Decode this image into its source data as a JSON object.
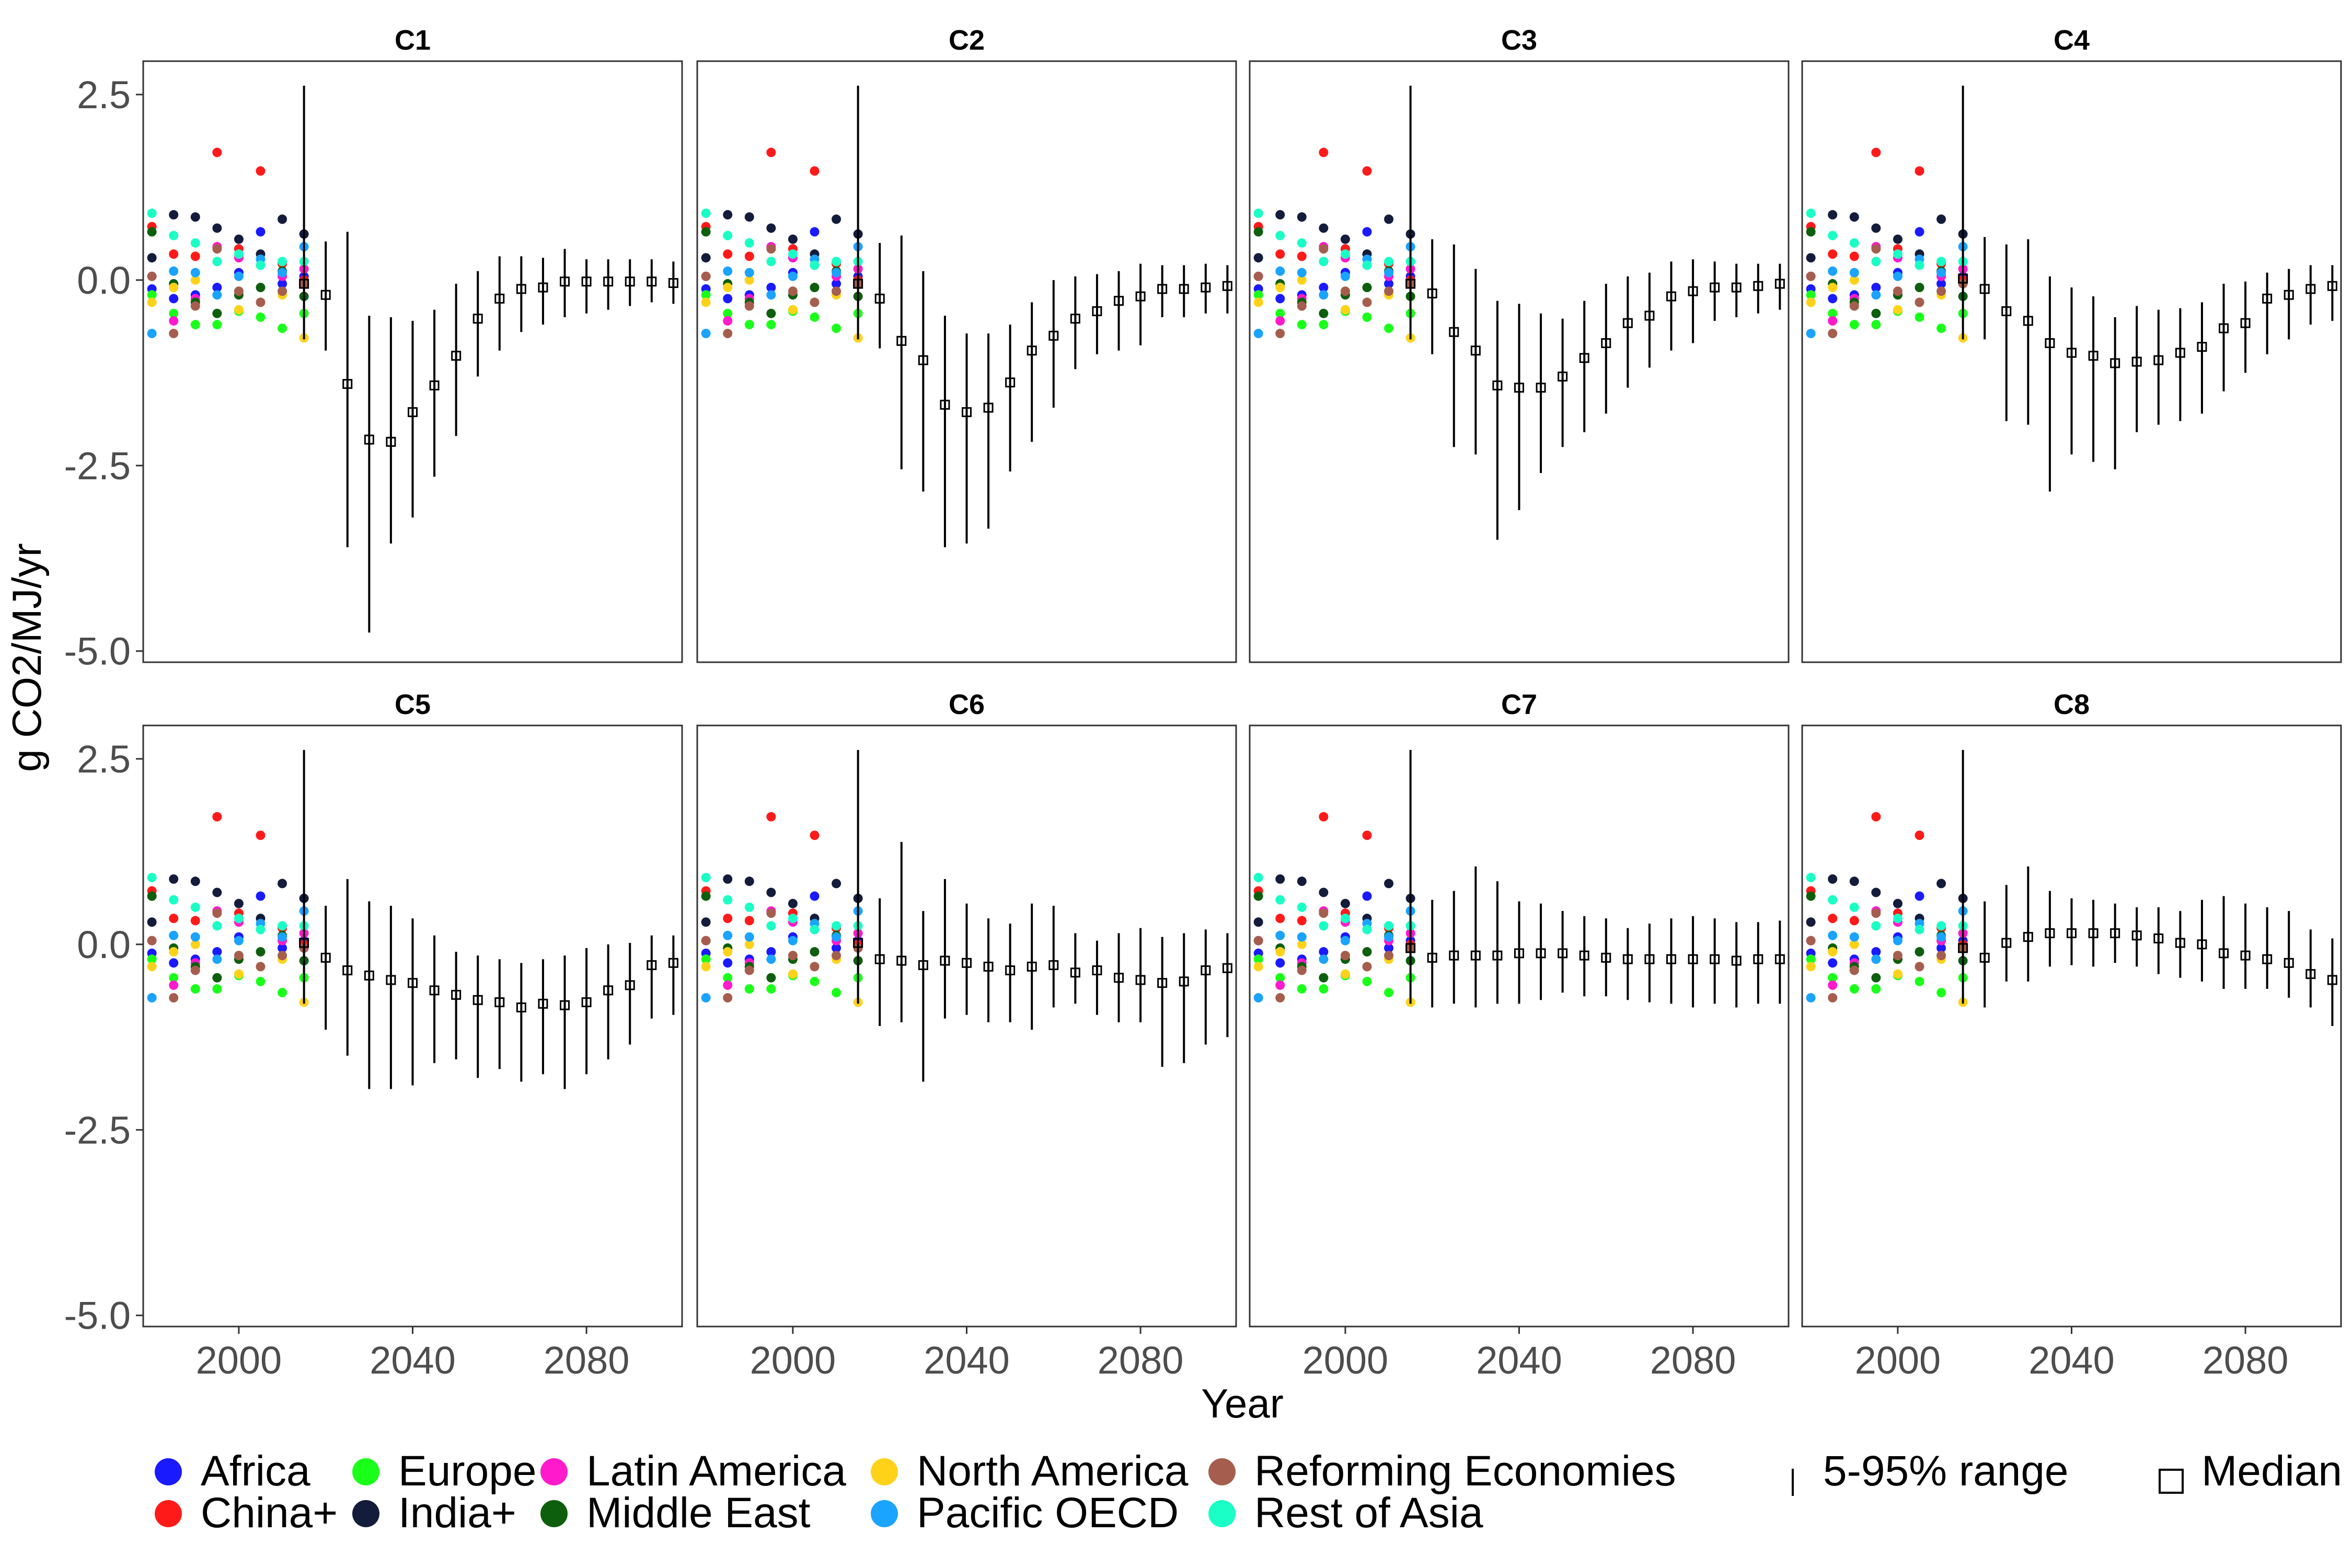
{
  "chart_data": {
    "type": "scatter",
    "panels": [
      "C1",
      "C2",
      "C3",
      "C4",
      "C5",
      "C6",
      "C7",
      "C8"
    ],
    "xlabel": "Year",
    "ylabel": "g CO2/MJ/yr",
    "xlim": [
      1978,
      2102
    ],
    "ylim": [
      -5.15,
      2.95
    ],
    "x_ticks": [
      {
        "value": 2000,
        "label": "2000"
      },
      {
        "value": 2040,
        "label": "2040"
      },
      {
        "value": 2080,
        "label": "2080"
      }
    ],
    "y_ticks": [
      {
        "value": 2.5,
        "label": "2.5"
      },
      {
        "value": 0.0,
        "label": "0.0"
      },
      {
        "value": -2.5,
        "label": "-2.5"
      },
      {
        "value": -5.0,
        "label": "-5.0"
      }
    ],
    "grid": false,
    "legend_position": "bottom",
    "regions": [
      {
        "name": "Africa",
        "color": "#1a1aff",
        "points": [
          [
            1980,
            -0.12
          ],
          [
            1985,
            -0.25
          ],
          [
            1990,
            -0.2
          ],
          [
            1995,
            -0.1
          ],
          [
            2000,
            0.1
          ],
          [
            2005,
            0.65
          ],
          [
            2010,
            -0.05
          ],
          [
            2015,
            0.05
          ]
        ]
      },
      {
        "name": "China+",
        "color": "#ff1a1a",
        "points": [
          [
            1980,
            0.72
          ],
          [
            1985,
            0.35
          ],
          [
            1990,
            0.32
          ],
          [
            1995,
            1.72
          ],
          [
            2000,
            0.42
          ],
          [
            2005,
            1.47
          ],
          [
            2010,
            0.22
          ],
          [
            2015,
            0.0
          ]
        ]
      },
      {
        "name": "Europe",
        "color": "#1aff1a",
        "points": [
          [
            1980,
            -0.2
          ],
          [
            1985,
            -0.45
          ],
          [
            1990,
            -0.6
          ],
          [
            1995,
            -0.6
          ],
          [
            2000,
            -0.42
          ],
          [
            2005,
            -0.5
          ],
          [
            2010,
            -0.65
          ],
          [
            2015,
            -0.45
          ]
        ]
      },
      {
        "name": "India+",
        "color": "#141c3c",
        "points": [
          [
            1980,
            0.3
          ],
          [
            1985,
            0.88
          ],
          [
            1990,
            0.85
          ],
          [
            1995,
            0.7
          ],
          [
            2000,
            0.55
          ],
          [
            2005,
            0.35
          ],
          [
            2010,
            0.82
          ],
          [
            2015,
            0.62
          ]
        ]
      },
      {
        "name": "Latin America",
        "color": "#ff1acc",
        "points": [
          [
            1980,
            0.05
          ],
          [
            1985,
            -0.55
          ],
          [
            1990,
            -0.25
          ],
          [
            1995,
            0.45
          ],
          [
            2000,
            0.3
          ],
          [
            2005,
            0.2
          ],
          [
            2010,
            0.05
          ],
          [
            2015,
            0.15
          ]
        ]
      },
      {
        "name": "Middle East",
        "color": "#0d5f0d",
        "points": [
          [
            1980,
            0.65
          ],
          [
            1985,
            -0.05
          ],
          [
            1990,
            -0.3
          ],
          [
            1995,
            -0.45
          ],
          [
            2000,
            -0.2
          ],
          [
            2005,
            -0.1
          ],
          [
            2010,
            0.12
          ],
          [
            2015,
            -0.22
          ]
        ]
      },
      {
        "name": "North America",
        "color": "#ffd21a",
        "points": [
          [
            1980,
            -0.3
          ],
          [
            1985,
            -0.1
          ],
          [
            1990,
            0.0
          ],
          [
            1995,
            0.25
          ],
          [
            2000,
            -0.4
          ],
          [
            2005,
            -0.3
          ],
          [
            2010,
            -0.2
          ],
          [
            2015,
            -0.78
          ]
        ]
      },
      {
        "name": "Pacific OECD",
        "color": "#1aa3ff",
        "points": [
          [
            1980,
            -0.72
          ],
          [
            1985,
            0.12
          ],
          [
            1990,
            0.1
          ],
          [
            1995,
            -0.2
          ],
          [
            2000,
            0.05
          ],
          [
            2005,
            0.28
          ],
          [
            2010,
            0.1
          ],
          [
            2015,
            0.45
          ]
        ]
      },
      {
        "name": "Reforming Economies",
        "color": "#a55e4e",
        "points": [
          [
            1980,
            0.05
          ],
          [
            1985,
            -0.72
          ],
          [
            1990,
            -0.35
          ],
          [
            1995,
            0.42
          ],
          [
            2000,
            -0.15
          ],
          [
            2005,
            -0.3
          ],
          [
            2010,
            -0.15
          ],
          [
            2015,
            -0.05
          ]
        ]
      },
      {
        "name": "Rest of Asia",
        "color": "#1affc6",
        "points": [
          [
            1980,
            0.9
          ],
          [
            1985,
            0.6
          ],
          [
            1990,
            0.5
          ],
          [
            1995,
            0.25
          ],
          [
            2000,
            0.35
          ],
          [
            2005,
            0.2
          ],
          [
            2010,
            0.25
          ],
          [
            2015,
            0.25
          ]
        ]
      }
    ],
    "projection_years": [
      2015,
      2020,
      2025,
      2030,
      2035,
      2040,
      2045,
      2050,
      2055,
      2060,
      2065,
      2070,
      2075,
      2080,
      2085,
      2090,
      2095,
      2100
    ],
    "scenarios": [
      {
        "name": "C1",
        "median": [
          -0.05,
          -0.2,
          -1.4,
          -2.15,
          -2.18,
          -1.78,
          -1.42,
          -1.02,
          -0.52,
          -0.25,
          -0.12,
          -0.1,
          -0.02,
          -0.02,
          -0.02,
          -0.02,
          -0.02,
          -0.04
        ],
        "low": [
          -0.8,
          -0.95,
          -3.6,
          -4.75,
          -3.55,
          -3.2,
          -2.65,
          -2.1,
          -1.3,
          -0.95,
          -0.7,
          -0.6,
          -0.5,
          -0.45,
          -0.4,
          -0.35,
          -0.3,
          -0.32
        ],
        "high": [
          2.62,
          0.52,
          0.65,
          -0.48,
          -0.5,
          -0.55,
          -0.4,
          -0.05,
          0.12,
          0.32,
          0.32,
          0.3,
          0.42,
          0.28,
          0.28,
          0.28,
          0.28,
          0.25
        ]
      },
      {
        "name": "C2",
        "median": [
          -0.05,
          -0.25,
          -0.82,
          -1.08,
          -1.68,
          -1.78,
          -1.72,
          -1.38,
          -0.95,
          -0.75,
          -0.52,
          -0.42,
          -0.28,
          -0.22,
          -0.12,
          -0.12,
          -0.1,
          -0.08
        ],
        "low": [
          -0.8,
          -0.92,
          -2.55,
          -2.85,
          -3.6,
          -3.55,
          -3.35,
          -2.58,
          -2.18,
          -1.72,
          -1.2,
          -1.0,
          -0.95,
          -0.88,
          -0.5,
          -0.5,
          -0.45,
          -0.45
        ],
        "high": [
          2.62,
          0.5,
          0.6,
          0.12,
          -0.48,
          -0.72,
          -0.72,
          -0.6,
          -0.3,
          0.0,
          0.05,
          0.08,
          0.12,
          0.22,
          0.2,
          0.2,
          0.22,
          0.2
        ]
      },
      {
        "name": "C3",
        "median": [
          -0.05,
          -0.18,
          -0.7,
          -0.95,
          -1.42,
          -1.45,
          -1.45,
          -1.3,
          -1.05,
          -0.85,
          -0.58,
          -0.48,
          -0.22,
          -0.15,
          -0.1,
          -0.1,
          -0.08,
          -0.05
        ],
        "low": [
          -0.8,
          -1.0,
          -2.25,
          -2.35,
          -3.5,
          -3.1,
          -2.6,
          -2.25,
          -2.05,
          -1.8,
          -1.45,
          -1.18,
          -0.95,
          -0.85,
          -0.55,
          -0.5,
          -0.45,
          -0.4
        ],
        "high": [
          2.62,
          0.55,
          0.48,
          0.15,
          -0.28,
          -0.32,
          -0.45,
          -0.52,
          -0.28,
          -0.05,
          0.05,
          0.1,
          0.25,
          0.28,
          0.25,
          0.22,
          0.22,
          0.22
        ]
      },
      {
        "name": "C4",
        "median": [
          0.02,
          -0.12,
          -0.42,
          -0.55,
          -0.85,
          -0.98,
          -1.02,
          -1.12,
          -1.1,
          -1.08,
          -0.98,
          -0.9,
          -0.65,
          -0.58,
          -0.25,
          -0.2,
          -0.12,
          -0.08
        ],
        "low": [
          -0.8,
          -0.8,
          -1.9,
          -1.95,
          -2.85,
          -2.35,
          -2.45,
          -2.55,
          -2.05,
          -1.95,
          -1.9,
          -1.8,
          -1.5,
          -1.25,
          -1.0,
          -0.8,
          -0.6,
          -0.55
        ],
        "high": [
          2.62,
          0.58,
          0.48,
          0.55,
          0.05,
          -0.1,
          -0.22,
          -0.5,
          -0.35,
          -0.4,
          -0.38,
          -0.3,
          -0.05,
          -0.02,
          0.1,
          0.15,
          0.2,
          0.2
        ]
      },
      {
        "name": "C5",
        "median": [
          0.02,
          -0.18,
          -0.35,
          -0.42,
          -0.48,
          -0.52,
          -0.62,
          -0.68,
          -0.75,
          -0.78,
          -0.85,
          -0.8,
          -0.82,
          -0.78,
          -0.62,
          -0.55,
          -0.28,
          -0.25
        ],
        "low": [
          -0.8,
          -1.15,
          -1.5,
          -1.95,
          -1.95,
          -1.9,
          -1.6,
          -1.55,
          -1.8,
          -1.68,
          -1.85,
          -1.75,
          -1.95,
          -1.75,
          -1.55,
          -1.35,
          -1.0,
          -0.95
        ],
        "high": [
          2.62,
          0.52,
          0.88,
          0.58,
          0.52,
          0.35,
          0.12,
          -0.1,
          -0.15,
          -0.2,
          -0.25,
          -0.2,
          -0.15,
          -0.05,
          0.0,
          0.02,
          0.12,
          0.12
        ]
      },
      {
        "name": "C6",
        "median": [
          0.02,
          -0.2,
          -0.22,
          -0.28,
          -0.22,
          -0.25,
          -0.3,
          -0.35,
          -0.3,
          -0.28,
          -0.38,
          -0.35,
          -0.45,
          -0.48,
          -0.52,
          -0.5,
          -0.35,
          -0.32
        ],
        "low": [
          -0.8,
          -1.1,
          -1.05,
          -1.85,
          -1.0,
          -0.95,
          -1.05,
          -1.05,
          -1.15,
          -0.85,
          -0.8,
          -0.95,
          -1.05,
          -1.05,
          -1.65,
          -1.6,
          -1.35,
          -1.25
        ],
        "high": [
          2.62,
          0.62,
          1.38,
          0.45,
          0.88,
          0.55,
          0.35,
          0.28,
          0.55,
          0.52,
          0.15,
          0.05,
          0.15,
          0.22,
          0.1,
          0.15,
          0.2,
          0.15
        ]
      },
      {
        "name": "C7",
        "median": [
          -0.05,
          -0.18,
          -0.15,
          -0.15,
          -0.15,
          -0.12,
          -0.12,
          -0.12,
          -0.15,
          -0.18,
          -0.2,
          -0.2,
          -0.2,
          -0.2,
          -0.2,
          -0.22,
          -0.2,
          -0.2
        ],
        "low": [
          -0.8,
          -0.85,
          -0.8,
          -0.85,
          -0.8,
          -0.8,
          -0.75,
          -0.65,
          -0.7,
          -0.7,
          -0.75,
          -0.78,
          -0.8,
          -0.85,
          -0.8,
          -0.85,
          -0.8,
          -0.8
        ],
        "high": [
          2.62,
          0.6,
          0.72,
          1.05,
          0.85,
          0.58,
          0.55,
          0.45,
          0.38,
          0.35,
          0.22,
          0.28,
          0.35,
          0.38,
          0.35,
          0.3,
          0.3,
          0.32
        ]
      },
      {
        "name": "C8",
        "median": [
          -0.05,
          -0.18,
          0.02,
          0.1,
          0.15,
          0.15,
          0.15,
          0.15,
          0.12,
          0.08,
          0.02,
          0.0,
          -0.12,
          -0.15,
          -0.2,
          -0.25,
          -0.4,
          -0.48
        ],
        "low": [
          -0.8,
          -0.85,
          -0.5,
          -0.5,
          -0.3,
          -0.28,
          -0.3,
          -0.25,
          -0.3,
          -0.4,
          -0.45,
          -0.5,
          -0.6,
          -0.6,
          -0.6,
          -0.72,
          -0.85,
          -1.1
        ],
        "high": [
          2.62,
          0.58,
          0.8,
          1.05,
          0.72,
          0.62,
          0.6,
          0.55,
          0.5,
          0.5,
          0.45,
          0.6,
          0.65,
          0.55,
          0.5,
          0.45,
          0.2,
          0.08
        ]
      }
    ],
    "legend_items": {
      "range": "5-95% range",
      "median": "Median"
    }
  }
}
